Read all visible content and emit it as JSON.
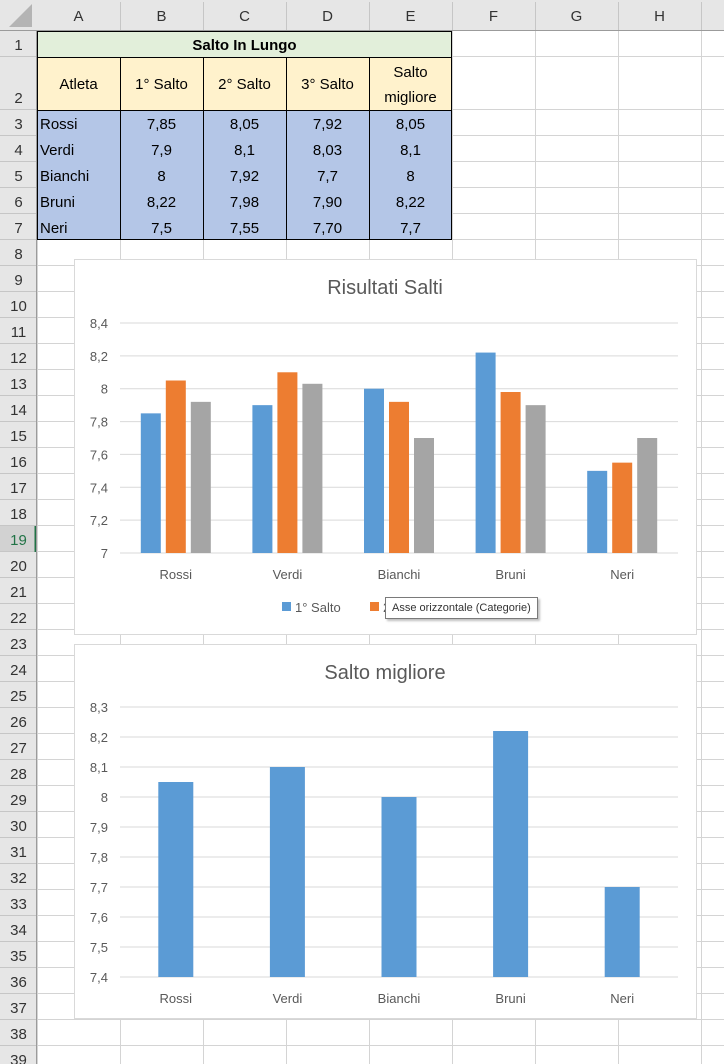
{
  "spreadsheet": {
    "columns": [
      "A",
      "B",
      "C",
      "D",
      "E",
      "F",
      "G",
      "H"
    ],
    "rows": [
      "1",
      "2",
      "3",
      "4",
      "5",
      "6",
      "7",
      "8",
      "9",
      "10",
      "11",
      "12",
      "13",
      "14",
      "15",
      "16",
      "17",
      "18",
      "19",
      "20",
      "21",
      "22",
      "23",
      "24",
      "25",
      "26",
      "27",
      "28",
      "29",
      "30",
      "31",
      "32",
      "33",
      "34",
      "35",
      "36",
      "37",
      "38",
      "39"
    ],
    "active_row": "19",
    "table": {
      "title": "Salto In Lungo",
      "headers": [
        "Atleta",
        "1° Salto",
        "2° Salto",
        "3° Salto",
        [
          "Salto",
          "migliore"
        ]
      ],
      "rows": [
        [
          "Rossi",
          "7,85",
          "8,05",
          "7,92",
          "8,05"
        ],
        [
          "Verdi",
          "7,9",
          "8,1",
          "8,03",
          "8,1"
        ],
        [
          "Bianchi",
          "8",
          "7,92",
          "7,7",
          "8"
        ],
        [
          "Bruni",
          "8,22",
          "7,98",
          "7,90",
          "8,22"
        ],
        [
          "Neri",
          "7,5",
          "7,55",
          "7,70",
          "7,7"
        ]
      ],
      "colors": {
        "title_bg": "#e2efda",
        "header_bg": "#fff2cc",
        "data_bg": "#b4c6e7"
      }
    }
  },
  "chart_data": [
    {
      "type": "bar",
      "title": "Risultati Salti",
      "categories": [
        "Rossi",
        "Verdi",
        "Bianchi",
        "Bruni",
        "Neri"
      ],
      "series": [
        {
          "name": "1° Salto",
          "values": [
            7.85,
            7.9,
            8,
            8.22,
            7.5
          ],
          "color": "#5b9bd5"
        },
        {
          "name": "2° Salto",
          "values": [
            8.05,
            8.1,
            7.92,
            7.98,
            7.55
          ],
          "color": "#ed7d31"
        },
        {
          "name": "3° Salto",
          "values": [
            7.92,
            8.03,
            7.7,
            7.9,
            7.7
          ],
          "color": "#a5a5a5"
        }
      ],
      "ylim": [
        7,
        8.4
      ],
      "yticks": [
        "7",
        "7,2",
        "7,4",
        "7,6",
        "7,8",
        "8",
        "8,2",
        "8,4"
      ],
      "grid": true,
      "legend": "bottom"
    },
    {
      "type": "bar",
      "title": "Salto migliore",
      "categories": [
        "Rossi",
        "Verdi",
        "Bianchi",
        "Bruni",
        "Neri"
      ],
      "series": [
        {
          "values": [
            8.05,
            8.1,
            8,
            8.22,
            7.7
          ],
          "color": "#5b9bd5"
        }
      ],
      "ylim": [
        7.4,
        8.3
      ],
      "yticks": [
        "7,4",
        "7,5",
        "7,6",
        "7,7",
        "7,8",
        "7,9",
        "8",
        "8,1",
        "8,2",
        "8,3"
      ],
      "grid": true,
      "legend": "none"
    }
  ],
  "tooltip": {
    "text": "Asse orizzontale (Categorie)"
  }
}
